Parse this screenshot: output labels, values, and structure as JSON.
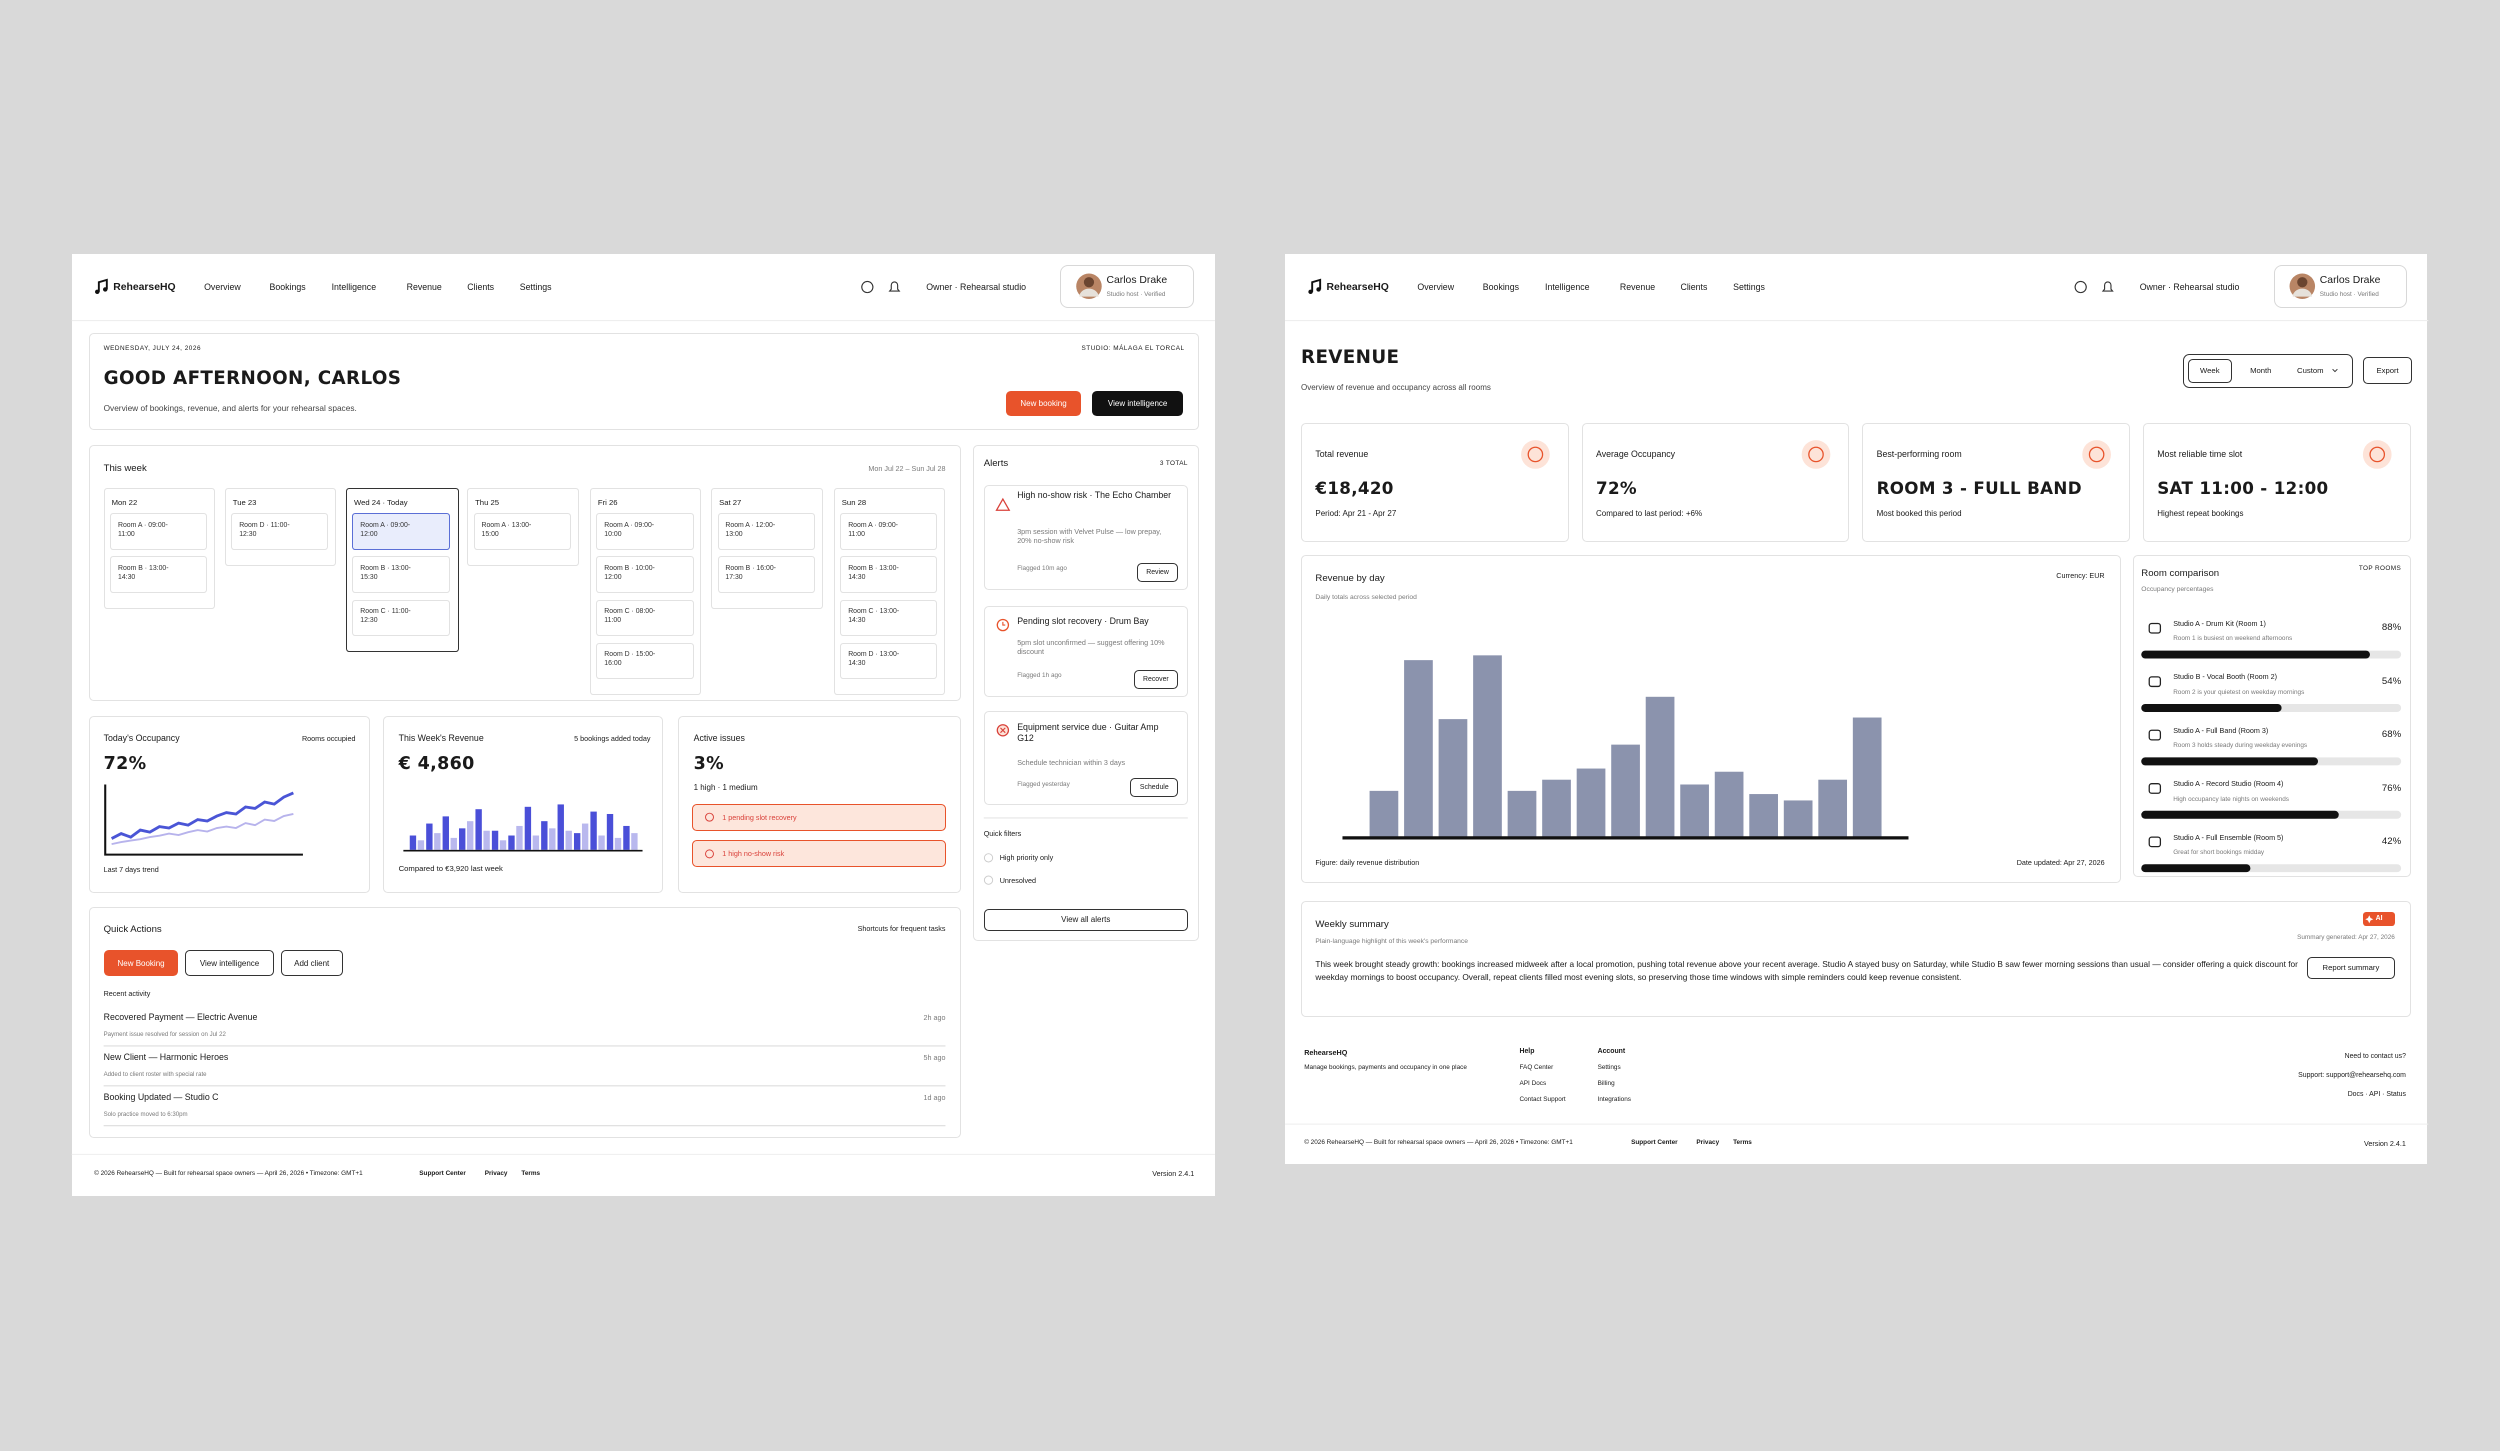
{
  "nav": {
    "brand": "RehearseHQ",
    "items": [
      "Overview",
      "Bookings",
      "Intelligence",
      "Revenue",
      "Clients",
      "Settings"
    ],
    "role": "Owner · Rehearsal studio",
    "user": {
      "name": "Carlos Drake",
      "meta": "Studio host · Verified"
    }
  },
  "dashboard": {
    "header": {
      "date": "WEDNESDAY, JULY 24, 2026",
      "studio": "STUDIO: MÁLAGA EL TORCAL",
      "greeting": "GOOD AFTERNOON, CARLOS",
      "subtitle": "Overview of bookings, revenue, and alerts for your rehearsal spaces.",
      "primary_button": "New booking",
      "secondary_button": "View intelligence"
    },
    "week": {
      "title": "This week",
      "range": "Mon Jul 22 – Sun Jul 28",
      "days": [
        {
          "label": "Mon 22",
          "slots": [
            "Room A · 09:00-11:00",
            "Room B · 13:00-14:30"
          ]
        },
        {
          "label": "Tue 23",
          "slots": [
            "Room D · 11:00-12:30"
          ]
        },
        {
          "label": "Wed 24 · Today",
          "slots": [
            "Room A · 09:00-12:00",
            "Room B · 13:00-15:30",
            "Room C · 11:00-12:30"
          ]
        },
        {
          "label": "Thu 25",
          "slots": [
            "Room A · 13:00-15:00"
          ]
        },
        {
          "label": "Fri 26",
          "slots": [
            "Room A · 09:00-10:00",
            "Room B · 10:00-12:00",
            "Room C · 08:00-11:00",
            "Room D · 15:00-16:00"
          ]
        },
        {
          "label": "Sat 27",
          "slots": [
            "Room A · 12:00-13:00",
            "Room B · 16:00-17:30"
          ]
        },
        {
          "label": "Sun 28",
          "slots": [
            "Room A · 09:00-11:00",
            "Room B · 13:00-14:30",
            "Room C · 13:00-14:30",
            "Room D · 13:00-14:30"
          ]
        }
      ]
    },
    "alerts": {
      "title": "Alerts",
      "count": "3 TOTAL",
      "items": [
        {
          "title": "High no-show risk · The Echo Chamber",
          "detail": "3pm session with Velvet Pulse — low prepay, 20% no-show risk",
          "time": "Flagged 10m ago",
          "action": "Review"
        },
        {
          "title": "Pending slot recovery · Drum Bay",
          "detail": "5pm slot unconfirmed — suggest offering 10% discount",
          "time": "Flagged 1h ago",
          "action": "Recover"
        },
        {
          "title": "Equipment service due · Guitar Amp G12",
          "detail": "Schedule technician within 3 days",
          "time": "Flagged yesterday",
          "action": "Schedule"
        }
      ],
      "filters_title": "Quick filters",
      "filters": [
        "High priority only",
        "Unresolved"
      ],
      "view_all": "View all alerts"
    },
    "occupancy": {
      "title": "Today's Occupancy",
      "note": "Rooms occupied",
      "value": "72%",
      "caption": "Last 7 days trend",
      "trend": {
        "type": "line",
        "ylim": [
          0,
          100
        ],
        "series": [
          {
            "color": "#4a55d6",
            "values": [
              23,
              30,
              25,
              35,
              32,
              40,
              38,
              45,
              42,
              50,
              48,
              55,
              60,
              58,
              68,
              66,
              75,
              72,
              82,
              88
            ]
          },
          {
            "color": "#b7b3ec",
            "values": [
              15,
              18,
              20,
              22,
              25,
              27,
              30,
              28,
              32,
              35,
              33,
              38,
              40,
              38,
              45,
              42,
              50,
              48,
              55,
              58
            ]
          }
        ]
      }
    },
    "weekly_revenue": {
      "title": "This Week's Revenue",
      "note": "5 bookings added today",
      "value": "€ 4,860",
      "caption": "Compared to €3,920 last week",
      "bars": {
        "type": "bar",
        "ylim": [
          0,
          100
        ],
        "series": [
          {
            "color": "#4a4fd8",
            "values": [
              30,
              55,
              70,
              45,
              85,
              40,
              30,
              90,
              60,
              95,
              35,
              80,
              75,
              50
            ]
          },
          {
            "color": "#b9b8ee",
            "values": [
              20,
              35,
              25,
              60,
              40,
              20,
              50,
              30,
              45,
              40,
              55,
              30,
              25,
              35
            ]
          }
        ]
      }
    },
    "issues": {
      "title": "Active issues",
      "value": "3%",
      "detail": "1 high · 1 medium",
      "tags": [
        "1 pending slot recovery",
        "1 high no-show risk"
      ]
    },
    "quick_actions": {
      "title": "Quick Actions",
      "note": "Shortcuts for frequent tasks",
      "buttons": [
        "New Booking",
        "View intelligence",
        "Add client"
      ],
      "recent_title": "Recent activity",
      "activity": [
        {
          "title": "Recovered Payment — Electric Avenue",
          "detail": "Payment issue resolved for session on Jul 22",
          "time": "2h ago"
        },
        {
          "title": "New Client — Harmonic Heroes",
          "detail": "Added to client roster with special rate",
          "time": "5h ago"
        },
        {
          "title": "Booking Updated — Studio C",
          "detail": "Solo practice moved to 6:30pm",
          "time": "1d ago"
        }
      ]
    }
  },
  "footer": {
    "copyright": "© 2026 RehearseHQ — Built for rehearsal space owners — April 26, 2026 • Timezone: GMT+1",
    "links": [
      "Support Center",
      "Privacy",
      "Terms"
    ],
    "version": "Version 2.4.1"
  },
  "revenue": {
    "title": "REVENUE",
    "subtitle": "Overview of revenue and occupancy across all rooms",
    "periods": [
      "Week",
      "Month",
      "Custom"
    ],
    "export": "Export",
    "kpis": [
      {
        "label": "Total revenue",
        "value": "€18,420",
        "note": "Period: Apr 21 - Apr 27"
      },
      {
        "label": "Average Occupancy",
        "value": "72%",
        "note": "Compared to last period: +6%"
      },
      {
        "label": "Best-performing room",
        "value": "ROOM 3 - FULL BAND",
        "note": "Most booked this period"
      },
      {
        "label": "Most reliable time slot",
        "value": "SAT 11:00 - 12:00",
        "note": "Highest repeat bookings"
      }
    ],
    "by_day": {
      "title": "Revenue by day",
      "subtitle": "Daily totals across selected period",
      "currency": "Currency: EUR",
      "caption": "Figure: daily revenue distribution",
      "updated": "Date updated: Apr 27, 2026",
      "chart": {
        "type": "bar",
        "ylim": [
          0,
          120
        ],
        "color": "#8b93ad",
        "values": [
          29,
          111,
          74,
          114,
          29,
          36,
          43,
          58,
          88,
          33,
          41,
          27,
          23,
          36,
          75
        ]
      }
    },
    "rooms": {
      "title": "Room comparison",
      "subtitle": "Occupancy percentages",
      "tag": "TOP ROOMS",
      "items": [
        {
          "name": "Studio A - Drum Kit (Room 1)",
          "note": "Room 1 is busiest on weekend afternoons"
        },
        {
          "name": "Studio B - Vocal Booth (Room 2)",
          "note": "Room 2 is your quietest on weekday mornings"
        },
        {
          "name": "Studio A - Full Band (Room 3)",
          "note": "Room 3 holds steady during weekday evenings"
        },
        {
          "name": "Studio A - Record Studio (Room 4)",
          "note": "High occupancy late nights on weekends"
        },
        {
          "name": "Studio A - Full Ensemble (Room 5)",
          "note": "Great for short bookings midday"
        }
      ],
      "chart": {
        "type": "bar",
        "ylim": [
          0,
          100
        ],
        "color": "#111111",
        "values": [
          88,
          54,
          68,
          76,
          42
        ],
        "value_labels": [
          "88%",
          "54%",
          "68%",
          "76%",
          "42%"
        ]
      }
    },
    "summary": {
      "title": "Weekly summary",
      "subtitle": "Plain-language highlight of this week's performance",
      "badge": "AI",
      "generated": "Summary generated: Apr 27, 2026",
      "button": "Report summary",
      "text": "This week brought steady growth: bookings increased midweek after a local promotion, pushing total revenue above your recent average. Studio A stayed busy on Saturday, while Studio B saw fewer morning sessions than usual — consider offering a quick discount for weekday mornings to boost occupancy. Overall, repeat clients filled most evening slots, so preserving those time windows with simple reminders could keep revenue consistent."
    },
    "site_footer": {
      "brand": "RehearseHQ",
      "tagline": "Manage bookings, payments and occupancy in one place",
      "columns": [
        {
          "title": "Help",
          "links": [
            "FAQ Center",
            "API Docs",
            "Contact Support"
          ]
        },
        {
          "title": "Account",
          "links": [
            "Settings",
            "Billing",
            "Integrations"
          ]
        }
      ],
      "contact": [
        "Need to contact us?",
        "Support: support@rehearsehq.com",
        "Docs · API · Status"
      ]
    }
  }
}
